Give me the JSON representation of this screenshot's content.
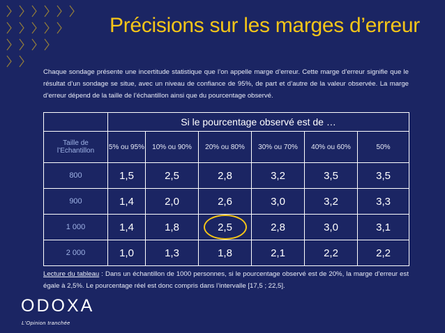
{
  "title": "Précisions sur les marges d’erreur",
  "intro": "Chaque sondage présente une incertitude statistique que l’on appelle marge d’erreur. Cette marge d’erreur signifie que le résultat d’un sondage se situe, avec un niveau de confiance de 95%, de part et d’autre de la valeur observée. La marge d’erreur dépend de la taille de l’échantillon ainsi que du pourcentage observé.",
  "table": {
    "group_header": "Si le pourcentage observé est de …",
    "size_header": "Taille de l’Echantillon",
    "columns": [
      "5% ou 95%",
      "10% ou 90%",
      "20% ou 80%",
      "30% ou 70%",
      "40% ou 60%",
      "50%"
    ],
    "rows": [
      {
        "size": "800",
        "values": [
          "1,5",
          "2,5",
          "2,8",
          "3,2",
          "3,5",
          "3,5"
        ]
      },
      {
        "size": "900",
        "values": [
          "1,4",
          "2,0",
          "2,6",
          "3,0",
          "3,2",
          "3,3"
        ]
      },
      {
        "size": "1 000",
        "values": [
          "1,4",
          "1,8",
          "2,5",
          "2,8",
          "3,0",
          "3,1"
        ]
      },
      {
        "size": "2 000",
        "values": [
          "1,0",
          "1,3",
          "1,8",
          "2,1",
          "2,2",
          "2,2"
        ]
      }
    ],
    "highlighted_cell": {
      "row": 2,
      "column": 2
    }
  },
  "reading": {
    "label": "Lecture du tableau",
    "text": " : Dans un échantillon de 1000 personnes, si le pourcentage observé est de 20%, la marge d’erreur est égale à 2,5%. Le pourcentage réel est donc compris dans l’intervalle [17,5 ; 22,5]."
  },
  "logo": {
    "text": "ODOXA",
    "tagline": "L’Opinion tranchée"
  },
  "colors": {
    "background": "#1b2563",
    "accent": "#f5c518",
    "label_blue": "#9fb3e6"
  }
}
